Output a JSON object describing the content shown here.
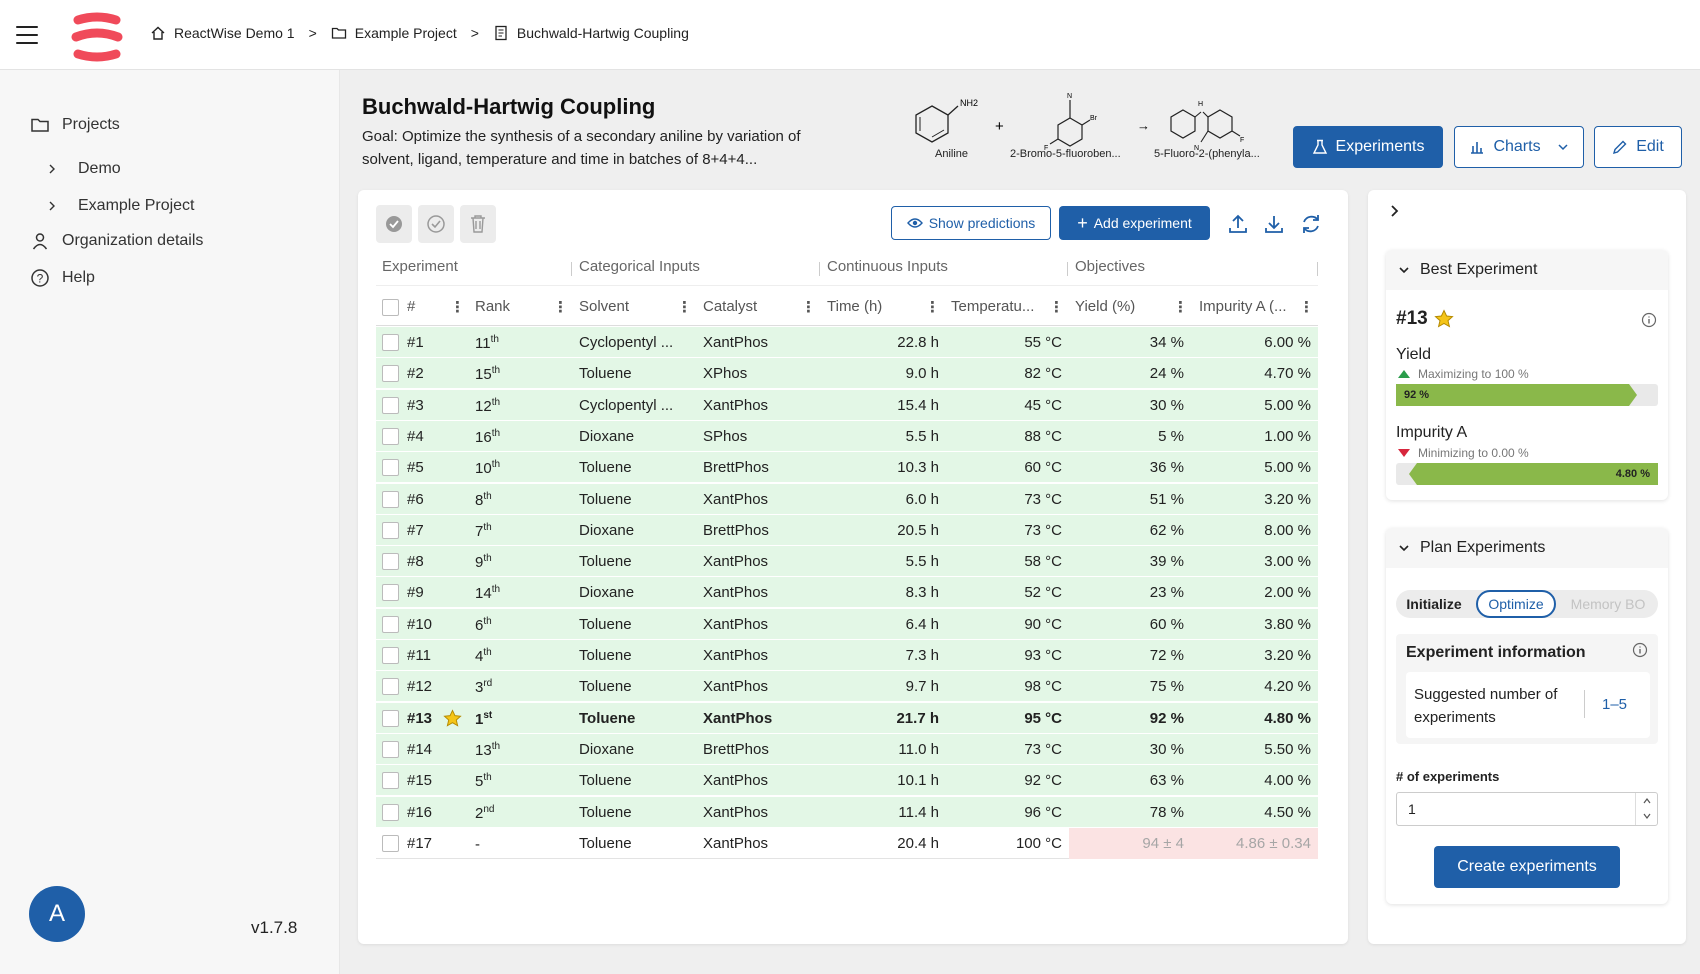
{
  "breadcrumb": [
    "ReactWise Demo 1",
    "Example Project",
    "Buchwald-Hartwig Coupling"
  ],
  "sidebar": {
    "projects": "Projects",
    "items": [
      "Demo",
      "Example Project"
    ],
    "org": "Organization details",
    "help": "Help",
    "avatar": "A",
    "version": "v1.7.8"
  },
  "project": {
    "title": "Buchwald-Hartwig Coupling",
    "goal": "Goal: Optimize the synthesis of a secondary aniline by variation of solvent, ligand, temperature and time in batches of 8+4+4...",
    "molecules": [
      "Aniline",
      "2-Bromo-5-fluoroben...",
      "5-Fluoro-2-(phenyla..."
    ],
    "mol_plus": "+",
    "mol_arrow": "→",
    "mol_nh2": "NH2",
    "mol_n": "N",
    "mol_br": "Br",
    "mol_f": "F",
    "mol_h": "H"
  },
  "header_buttons": {
    "experiments": "Experiments",
    "charts": "Charts",
    "edit": "Edit"
  },
  "toolbar": {
    "show_predictions": "Show predictions",
    "add_experiment": "Add experiment"
  },
  "groups": [
    "Experiment",
    "Categorical Inputs",
    "Continuous Inputs",
    "Objectives"
  ],
  "columns": [
    "#",
    "Rank",
    "Solvent",
    "Catalyst",
    "Time (h)",
    "Temperatu...",
    "Yield (%)",
    "Impurity A (..."
  ],
  "rows": [
    {
      "id": "#1",
      "rank": "11",
      "sup": "th",
      "solvent": "Cyclopentyl ...",
      "catalyst": "XantPhos",
      "time": "22.8 h",
      "temp": "55 °C",
      "yield": "34 %",
      "imp": "6.00 %"
    },
    {
      "id": "#2",
      "rank": "15",
      "sup": "th",
      "solvent": "Toluene",
      "catalyst": "XPhos",
      "time": "9.0 h",
      "temp": "82 °C",
      "yield": "24 %",
      "imp": "4.70 %"
    },
    {
      "id": "#3",
      "rank": "12",
      "sup": "th",
      "solvent": "Cyclopentyl ...",
      "catalyst": "XantPhos",
      "time": "15.4 h",
      "temp": "45 °C",
      "yield": "30 %",
      "imp": "5.00 %"
    },
    {
      "id": "#4",
      "rank": "16",
      "sup": "th",
      "solvent": "Dioxane",
      "catalyst": "SPhos",
      "time": "5.5 h",
      "temp": "88 °C",
      "yield": "5 %",
      "imp": "1.00 %"
    },
    {
      "id": "#5",
      "rank": "10",
      "sup": "th",
      "solvent": "Toluene",
      "catalyst": "BrettPhos",
      "time": "10.3 h",
      "temp": "60 °C",
      "yield": "36 %",
      "imp": "5.00 %"
    },
    {
      "id": "#6",
      "rank": "8",
      "sup": "th",
      "solvent": "Toluene",
      "catalyst": "XantPhos",
      "time": "6.0 h",
      "temp": "73 °C",
      "yield": "51 %",
      "imp": "3.20 %"
    },
    {
      "id": "#7",
      "rank": "7",
      "sup": "th",
      "solvent": "Dioxane",
      "catalyst": "BrettPhos",
      "time": "20.5 h",
      "temp": "73 °C",
      "yield": "62 %",
      "imp": "8.00 %"
    },
    {
      "id": "#8",
      "rank": "9",
      "sup": "th",
      "solvent": "Toluene",
      "catalyst": "XantPhos",
      "time": "5.5 h",
      "temp": "58 °C",
      "yield": "39 %",
      "imp": "3.00 %"
    },
    {
      "id": "#9",
      "rank": "14",
      "sup": "th",
      "solvent": "Dioxane",
      "catalyst": "XantPhos",
      "time": "8.3 h",
      "temp": "52 °C",
      "yield": "23 %",
      "imp": "2.00 %"
    },
    {
      "id": "#10",
      "rank": "6",
      "sup": "th",
      "solvent": "Toluene",
      "catalyst": "XantPhos",
      "time": "6.4 h",
      "temp": "90 °C",
      "yield": "60 %",
      "imp": "3.80 %"
    },
    {
      "id": "#11",
      "rank": "4",
      "sup": "th",
      "solvent": "Toluene",
      "catalyst": "XantPhos",
      "time": "7.3 h",
      "temp": "93 °C",
      "yield": "72 %",
      "imp": "3.20 %"
    },
    {
      "id": "#12",
      "rank": "3",
      "sup": "rd",
      "solvent": "Toluene",
      "catalyst": "XantPhos",
      "time": "9.7 h",
      "temp": "98 °C",
      "yield": "75 %",
      "imp": "4.20 %"
    },
    {
      "id": "#13",
      "rank": "1",
      "sup": "st",
      "solvent": "Toluene",
      "catalyst": "XantPhos",
      "time": "21.7 h",
      "temp": "95 °C",
      "yield": "92 %",
      "imp": "4.80 %",
      "best": true
    },
    {
      "id": "#14",
      "rank": "13",
      "sup": "th",
      "solvent": "Dioxane",
      "catalyst": "BrettPhos",
      "time": "11.0 h",
      "temp": "73 °C",
      "yield": "30 %",
      "imp": "5.50 %"
    },
    {
      "id": "#15",
      "rank": "5",
      "sup": "th",
      "solvent": "Toluene",
      "catalyst": "XantPhos",
      "time": "10.1 h",
      "temp": "92 °C",
      "yield": "63 %",
      "imp": "4.00 %"
    },
    {
      "id": "#16",
      "rank": "2",
      "sup": "nd",
      "solvent": "Toluene",
      "catalyst": "XantPhos",
      "time": "11.4 h",
      "temp": "96 °C",
      "yield": "78 %",
      "imp": "4.50 %"
    },
    {
      "id": "#17",
      "rank": "-",
      "sup": "",
      "solvent": "Toluene",
      "catalyst": "XantPhos",
      "time": "20.4 h",
      "temp": "100 °C",
      "yield": "94 ± 4",
      "imp": "4.86 ± 0.34",
      "predicted": true
    }
  ],
  "best": {
    "title": "Best Experiment",
    "id": "#13",
    "yield_label": "Yield",
    "yield_goal": "Maximizing to 100 %",
    "yield_value": "92 %",
    "yield_fraction": 0.92,
    "imp_label": "Impurity A",
    "imp_goal": "Minimizing to 0.00 %",
    "imp_value": "4.80 %",
    "imp_fraction": 0.95
  },
  "plan": {
    "title": "Plan Experiments",
    "tabs": [
      "Initialize",
      "Optimize",
      "Memory BO"
    ],
    "info_title": "Experiment information",
    "suggested_label": "Suggested number of experiments",
    "suggested_value": "1–5",
    "num_label": "# of experiments",
    "num_value": "1",
    "create": "Create experiments"
  },
  "colors": {
    "primary": "#1f5fa8",
    "row_green": "#e3f7e6",
    "pred_red": "#fbe3e3",
    "bar_green": "#8ab84a",
    "logo_red": "#f04a5a"
  }
}
